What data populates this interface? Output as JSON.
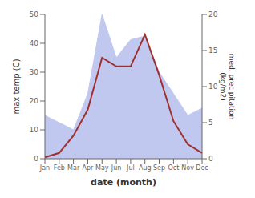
{
  "chart_data": {
    "type": "line",
    "categories": [
      "Jan",
      "Feb",
      "Mar",
      "Apr",
      "May",
      "Jun",
      "Jul",
      "Aug",
      "Sep",
      "Oct",
      "Nov",
      "Dec"
    ],
    "xlabel": "date (month)",
    "ylabel": "max temp (C)",
    "y2label": "med. precipitation\n(kg/m2)",
    "ylim": [
      0,
      50
    ],
    "yticks": [
      0,
      10,
      20,
      30,
      40,
      50
    ],
    "y2lim": [
      0,
      20
    ],
    "y2ticks": [
      0,
      5,
      10,
      15,
      20
    ],
    "grid": false,
    "series": [
      {
        "type": "area",
        "color": "#c0c8f0",
        "axis": "y2",
        "values": [
          6.0,
          5.0,
          4.0,
          9.0,
          20.0,
          14.0,
          16.5,
          17.0,
          12.0,
          9.0,
          6.0,
          7.0
        ]
      },
      {
        "type": "line",
        "color": "#a03030",
        "values": [
          0.5,
          2.0,
          8.0,
          17.0,
          35.0,
          32.0,
          32.0,
          43.0,
          29.0,
          13.0,
          5.0,
          2.0
        ]
      }
    ]
  }
}
